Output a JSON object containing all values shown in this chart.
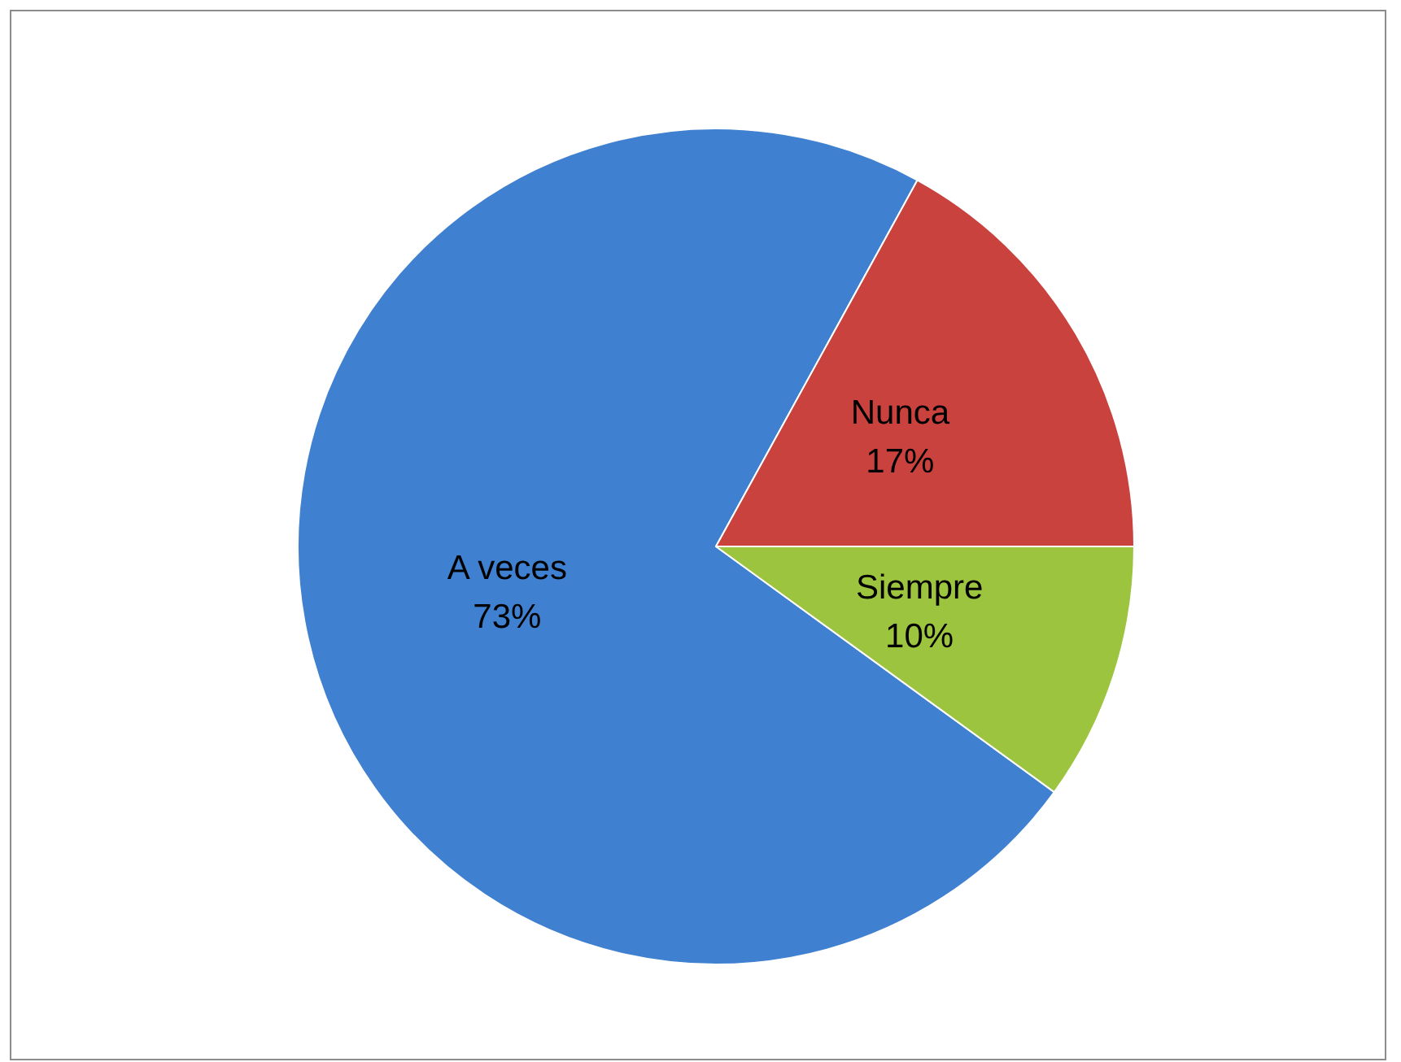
{
  "chart_data": {
    "type": "pie",
    "categories": [
      "A veces",
      "Nunca",
      "Siempre"
    ],
    "values": [
      73,
      17,
      10
    ],
    "colors": [
      "#3f80d0",
      "#c9423e",
      "#9cc43e"
    ],
    "value_labels": [
      "73%",
      "17%",
      "10%"
    ],
    "legend": false
  }
}
